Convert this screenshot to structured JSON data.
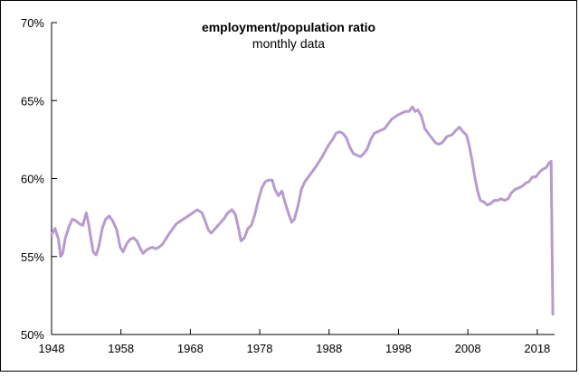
{
  "chart_data": {
    "type": "line",
    "title": "employment/population ratio",
    "subtitle": "monthly data",
    "xlabel": "",
    "ylabel": "",
    "xlim": [
      1948,
      2020.5
    ],
    "ylim": [
      50,
      70
    ],
    "x_ticks": [
      1948,
      1958,
      1968,
      1978,
      1988,
      1998,
      2008,
      2018
    ],
    "x_tick_labels": [
      "1948",
      "1958",
      "1968",
      "1978",
      "1988",
      "1998",
      "2008",
      "2018"
    ],
    "y_ticks": [
      50,
      55,
      60,
      65,
      70
    ],
    "y_tick_labels": [
      "50%",
      "55%",
      "60%",
      "65%",
      "70%"
    ],
    "grid": false,
    "line_color": "#b79bd0",
    "series": [
      {
        "name": "employment/population ratio",
        "x": [
          1948.0,
          1948.5,
          1949.0,
          1949.3,
          1949.6,
          1950.0,
          1950.5,
          1951.0,
          1951.5,
          1952.0,
          1952.5,
          1953.0,
          1953.3,
          1953.7,
          1954.0,
          1954.4,
          1954.8,
          1955.3,
          1955.8,
          1956.3,
          1956.8,
          1957.4,
          1957.9,
          1958.3,
          1958.8,
          1959.3,
          1959.8,
          1960.3,
          1960.8,
          1961.2,
          1961.6,
          1962.0,
          1962.5,
          1963.0,
          1963.5,
          1964.0,
          1965.0,
          1966.0,
          1967.0,
          1968.0,
          1969.0,
          1969.7,
          1970.2,
          1970.6,
          1971.0,
          1971.6,
          1972.2,
          1972.8,
          1973.4,
          1974.0,
          1974.5,
          1974.9,
          1975.3,
          1975.8,
          1976.3,
          1976.8,
          1977.3,
          1977.8,
          1978.3,
          1978.8,
          1979.3,
          1979.8,
          1980.2,
          1980.7,
          1981.2,
          1981.7,
          1982.2,
          1982.6,
          1983.0,
          1983.5,
          1984.0,
          1984.5,
          1985.0,
          1986.0,
          1987.0,
          1988.0,
          1988.5,
          1989.0,
          1989.5,
          1990.0,
          1990.5,
          1991.0,
          1991.5,
          1992.0,
          1992.5,
          1993.0,
          1993.5,
          1994.0,
          1994.5,
          1995.0,
          1996.0,
          1997.0,
          1998.0,
          1998.5,
          1999.0,
          1999.5,
          2000.0,
          2000.4,
          2000.8,
          2001.3,
          2001.8,
          2002.3,
          2002.8,
          2003.3,
          2003.8,
          2004.3,
          2005.0,
          2005.7,
          2006.3,
          2006.8,
          2007.3,
          2007.8,
          2008.2,
          2008.6,
          2009.0,
          2009.4,
          2009.8,
          2010.3,
          2010.8,
          2011.3,
          2011.8,
          2012.3,
          2012.8,
          2013.3,
          2013.8,
          2014.3,
          2014.8,
          2015.3,
          2015.8,
          2016.3,
          2016.8,
          2017.3,
          2017.8,
          2018.3,
          2018.8,
          2019.3,
          2019.7,
          2020.0,
          2020.25
        ],
        "values": [
          56.4,
          56.8,
          56.1,
          55.0,
          55.2,
          56.2,
          56.9,
          57.4,
          57.3,
          57.1,
          57.0,
          57.8,
          57.2,
          56.1,
          55.3,
          55.1,
          55.6,
          56.8,
          57.4,
          57.6,
          57.3,
          56.7,
          55.6,
          55.3,
          55.8,
          56.1,
          56.2,
          56.0,
          55.5,
          55.2,
          55.4,
          55.5,
          55.6,
          55.5,
          55.6,
          55.8,
          56.5,
          57.1,
          57.4,
          57.7,
          58.0,
          57.8,
          57.2,
          56.7,
          56.5,
          56.8,
          57.1,
          57.4,
          57.8,
          58.0,
          57.7,
          56.9,
          56.0,
          56.2,
          56.8,
          57.0,
          57.7,
          58.6,
          59.4,
          59.8,
          59.9,
          59.9,
          59.3,
          58.9,
          59.2,
          58.4,
          57.7,
          57.2,
          57.4,
          58.2,
          59.3,
          59.8,
          60.1,
          60.7,
          61.4,
          62.2,
          62.5,
          62.9,
          63.0,
          62.9,
          62.6,
          62.0,
          61.6,
          61.5,
          61.4,
          61.6,
          61.9,
          62.5,
          62.9,
          63.0,
          63.2,
          63.8,
          64.1,
          64.2,
          64.3,
          64.3,
          64.6,
          64.3,
          64.4,
          64.0,
          63.2,
          62.9,
          62.6,
          62.3,
          62.2,
          62.3,
          62.7,
          62.8,
          63.1,
          63.3,
          63.0,
          62.8,
          62.1,
          61.2,
          60.1,
          59.2,
          58.6,
          58.5,
          58.3,
          58.4,
          58.6,
          58.6,
          58.7,
          58.6,
          58.7,
          59.1,
          59.3,
          59.4,
          59.5,
          59.7,
          59.8,
          60.1,
          60.1,
          60.4,
          60.6,
          60.7,
          61.0,
          61.1,
          51.3
        ]
      }
    ]
  }
}
